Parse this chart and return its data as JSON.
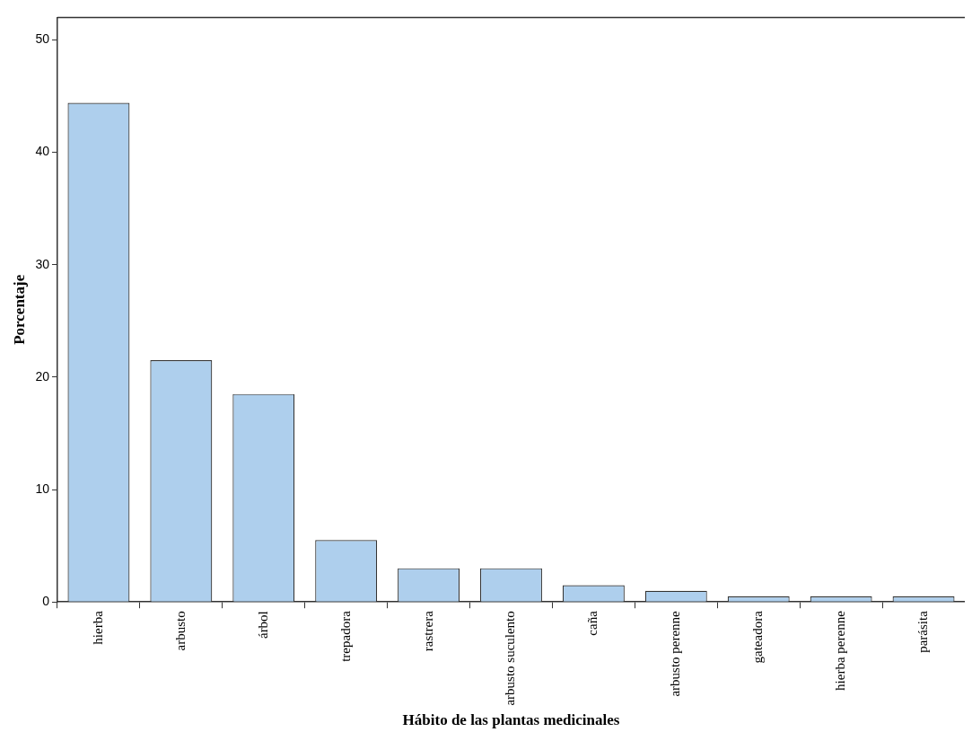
{
  "chart_data": {
    "type": "bar",
    "xlabel": "Hábito de las plantas medicinales",
    "ylabel": "Porcentaje",
    "categories": [
      "hierba",
      "arbusto",
      "árbol",
      "trepadora",
      "rastrera",
      "arbusto suculento",
      "caña",
      "arbusto perenne",
      "gateadora",
      "hierba perenne",
      "parásita"
    ],
    "values": [
      44.4,
      21.5,
      18.5,
      5.5,
      3.0,
      3.0,
      1.5,
      1.0,
      0.5,
      0.5,
      0.5
    ],
    "color": "#aecfed",
    "ylim": [
      0,
      52
    ],
    "yticks": [
      0,
      10,
      20,
      30,
      40,
      50
    ],
    "grid": false,
    "legend": false
  }
}
